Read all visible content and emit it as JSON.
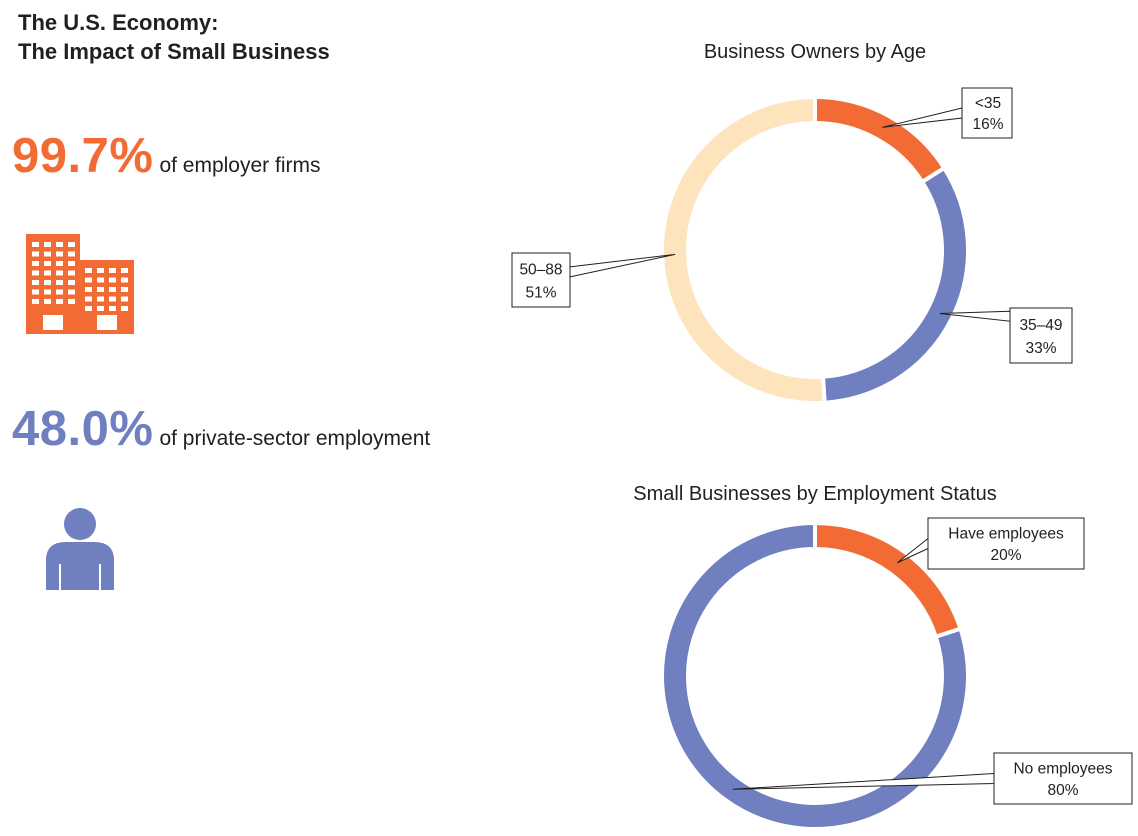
{
  "header": {
    "title_line1": "The U.S. Economy:",
    "title_line2": "The Impact of Small Business"
  },
  "stats": [
    {
      "value": "99.7%",
      "label": "of employer firms",
      "color": "#f26b35"
    },
    {
      "value": "48.0%",
      "label": "of private-sector employment",
      "color": "#6f7fbf"
    }
  ],
  "icons": {
    "stat1": "office-building-icon",
    "stat2": "person-icon"
  },
  "colors": {
    "orange": "#f26b35",
    "blue": "#6f7fbf",
    "cream": "#fde4bd"
  },
  "chart_data": [
    {
      "type": "pie",
      "style": "donut",
      "title": "Business Owners by Age",
      "categories": [
        "<35",
        "35–49",
        "50–88"
      ],
      "values": [
        16,
        33,
        51
      ],
      "value_labels": [
        "16%",
        "33%",
        "51%"
      ],
      "colors": [
        "#f26b35",
        "#6f7fbf",
        "#fde4bd"
      ]
    },
    {
      "type": "pie",
      "style": "donut",
      "title": "Small Businesses by Employment Status",
      "categories": [
        "Have employees",
        "No employees"
      ],
      "values": [
        20,
        80
      ],
      "value_labels": [
        "20%",
        "80%"
      ],
      "colors": [
        "#f26b35",
        "#6f7fbf"
      ]
    }
  ]
}
